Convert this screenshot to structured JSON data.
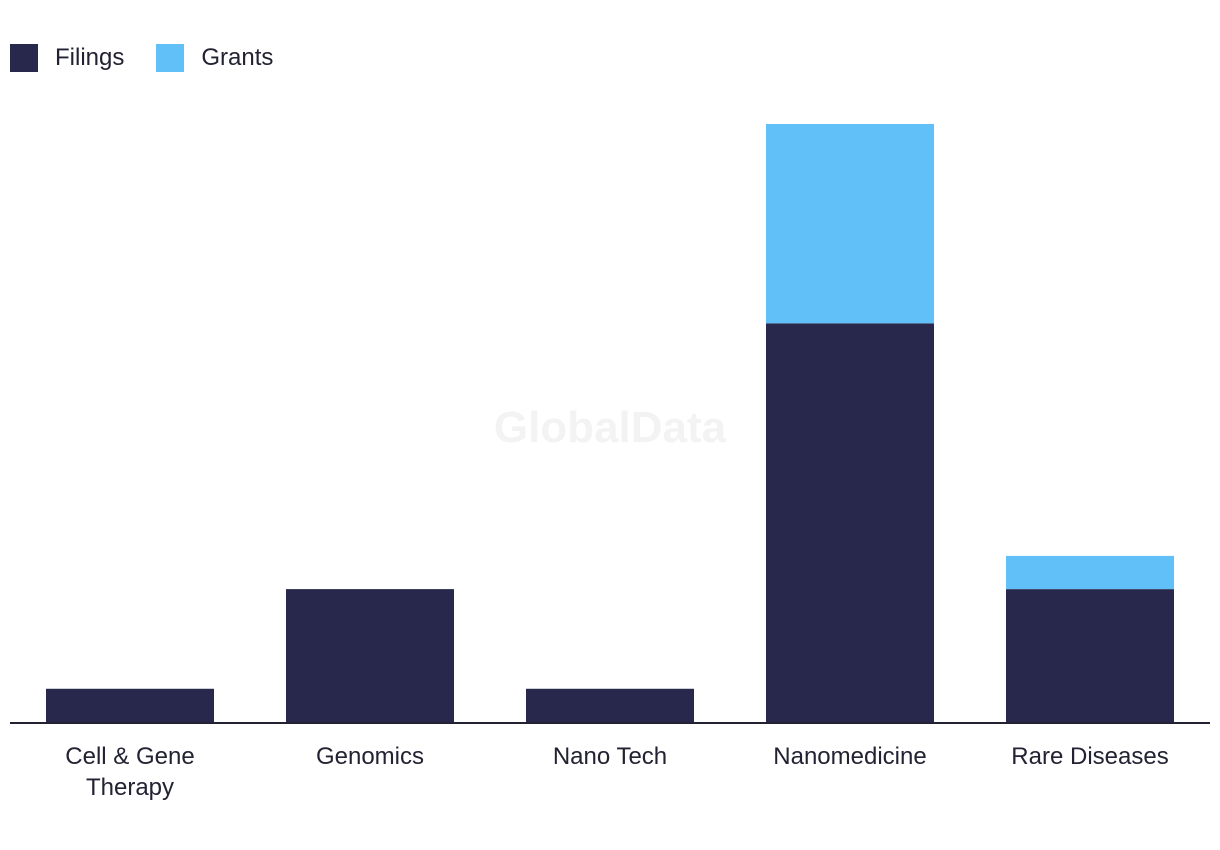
{
  "watermark": "GlobalData",
  "legend": {
    "items": [
      {
        "label": "Filings",
        "color": "#27284b"
      },
      {
        "label": "Grants",
        "color": "#62c0f8"
      }
    ]
  },
  "chart_data": {
    "type": "bar",
    "stacked": true,
    "categories": [
      [
        "Cell & Gene",
        "Therapy"
      ],
      [
        "Genomics"
      ],
      [
        "Nano Tech"
      ],
      [
        "Nanomedicine"
      ],
      [
        "Rare Diseases"
      ]
    ],
    "series": [
      {
        "name": "Filings",
        "color": "#27284b",
        "values": [
          1,
          4,
          1,
          12,
          4
        ]
      },
      {
        "name": "Grants",
        "color": "#62c0f8",
        "values": [
          0,
          0,
          0,
          6,
          1
        ]
      }
    ],
    "ylim": [
      0,
      18
    ],
    "grid": false,
    "legend_position": "top-left",
    "title": "",
    "xlabel": "",
    "ylabel": ""
  }
}
